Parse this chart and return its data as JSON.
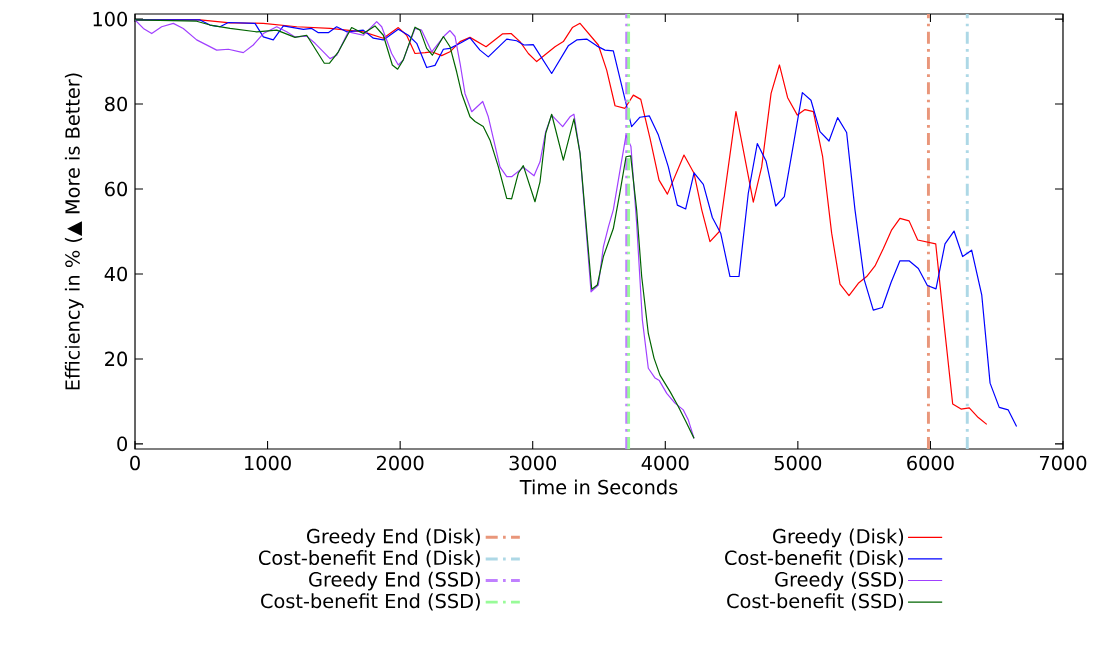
{
  "chart_data": {
    "type": "line",
    "xlabel": "Time in Seconds",
    "ylabel": "Efficiency in % (▲ More is Better)",
    "xlim": [
      0,
      7000
    ],
    "ylim": [
      -1.2,
      101.2
    ],
    "xticks": [
      0,
      1000,
      2000,
      3000,
      4000,
      5000,
      6000,
      7000
    ],
    "yticks": [
      0,
      20,
      40,
      60,
      80,
      100
    ],
    "grid": false,
    "legend": "bottom",
    "line_style": "solid",
    "marker": "none",
    "series": [
      {
        "name": "Greedy (Disk)",
        "color": "#ff0000",
        "x": [
          0,
          490,
          717,
          968,
          1220,
          1471,
          1722,
          1873,
          1986,
          2049,
          2112,
          2188,
          2238,
          2313,
          2376,
          2452,
          2527,
          2648,
          2771,
          2837,
          2904,
          2967,
          3030,
          3168,
          3231,
          3299,
          3357,
          3495,
          3558,
          3621,
          3696,
          3759,
          3815,
          3885,
          3953,
          4016,
          4141,
          4217,
          4275,
          4337,
          4408,
          4533,
          4664,
          4727,
          4798,
          4861,
          4923,
          4996,
          5054,
          5117,
          5187,
          5255,
          5318,
          5386,
          5456,
          5519,
          5582,
          5645,
          5708,
          5770,
          5839,
          5904,
          6040,
          6105,
          6168,
          6231,
          6293,
          6361,
          6425
        ],
        "values": [
          99.8,
          99.8,
          99.1,
          99.0,
          98.2,
          97.8,
          97.0,
          95.5,
          98.0,
          96.2,
          91.9,
          92.1,
          92.3,
          91.4,
          92.3,
          94.7,
          95.7,
          93.5,
          96.5,
          96.6,
          94.7,
          91.9,
          90.0,
          93.5,
          94.7,
          98.0,
          99.0,
          93.9,
          88.0,
          79.6,
          79.0,
          82.1,
          81.1,
          71.9,
          62.1,
          58.8,
          68.0,
          63.7,
          55.1,
          47.6,
          50.0,
          78.2,
          56.9,
          65.2,
          82.5,
          89.2,
          81.5,
          77.4,
          78.7,
          78.2,
          67.6,
          49.6,
          37.6,
          34.9,
          37.8,
          39.4,
          41.9,
          46.0,
          50.4,
          53.1,
          52.5,
          48.0,
          47.1,
          27.6,
          9.4,
          8.2,
          8.5,
          6.2,
          4.6
        ]
      },
      {
        "name": "Cost-benefit (Disk)",
        "color": "#0000ff",
        "x": [
          0,
          490,
          566,
          641,
          704,
          905,
          968,
          1043,
          1119,
          1270,
          1333,
          1383,
          1458,
          1521,
          1597,
          1722,
          1798,
          1873,
          1986,
          2062,
          2125,
          2200,
          2263,
          2326,
          2376,
          2452,
          2527,
          2602,
          2665,
          2804,
          2879,
          2934,
          3004,
          3143,
          3268,
          3332,
          3407,
          3483,
          3545,
          3608,
          3746,
          3809,
          3880,
          3948,
          4023,
          4091,
          4154,
          4217,
          4287,
          4355,
          4418,
          4488,
          4556,
          4626,
          4694,
          4760,
          4833,
          4898,
          4966,
          5034,
          5099,
          5167,
          5235,
          5300,
          5368,
          5431,
          5501,
          5569,
          5637,
          5703,
          5770,
          5839,
          5909,
          5977,
          6042,
          6110,
          6178,
          6243,
          6311,
          6387,
          6450,
          6519,
          6587,
          6650
        ],
        "values": [
          99.8,
          99.8,
          98.6,
          98.2,
          99.2,
          99.0,
          95.8,
          95.1,
          98.4,
          97.6,
          97.8,
          96.8,
          96.8,
          98.2,
          97.0,
          97.4,
          95.5,
          95.1,
          97.6,
          96.2,
          94.3,
          88.6,
          89.1,
          92.9,
          93.1,
          94.3,
          95.6,
          92.7,
          91.1,
          95.3,
          94.9,
          93.9,
          94.0,
          87.2,
          93.7,
          95.1,
          95.3,
          93.7,
          92.7,
          92.5,
          74.7,
          76.9,
          77.2,
          72.7,
          65.2,
          56.2,
          55.3,
          63.8,
          61.1,
          53.3,
          49.6,
          39.4,
          39.4,
          59.0,
          70.7,
          66.6,
          56.0,
          58.2,
          70.4,
          82.7,
          80.9,
          73.5,
          71.3,
          76.8,
          73.3,
          55.1,
          38.6,
          31.5,
          32.1,
          38.0,
          43.1,
          43.1,
          41.3,
          37.3,
          36.5,
          47.1,
          50.1,
          44.1,
          45.6,
          35.1,
          14.3,
          8.6,
          8.0,
          4.1
        ]
      },
      {
        "name": "Greedy (SSD)",
        "color": "#a040ff",
        "x": [
          0,
          63,
          126,
          201,
          289,
          364,
          465,
          616,
          704,
          817,
          892,
          968,
          1069,
          1144,
          1207,
          1295,
          1358,
          1471,
          1521,
          1609,
          1722,
          1823,
          1861,
          1936,
          1986,
          2024,
          2112,
          2162,
          2238,
          2338,
          2376,
          2414,
          2452,
          2489,
          2540,
          2623,
          2665,
          2753,
          2804,
          2841,
          2929,
          3010,
          3055,
          3098,
          3143,
          3226,
          3281,
          3311,
          3357,
          3440,
          3495,
          3533,
          3571,
          3608,
          3659,
          3704,
          3741,
          3784,
          3827,
          3872,
          3923,
          3955,
          4011,
          4073,
          4136,
          4174,
          4217
        ],
        "values": [
          99.8,
          97.8,
          96.6,
          98.2,
          99.0,
          97.8,
          95.1,
          92.7,
          92.9,
          92.1,
          93.9,
          96.6,
          98.2,
          97.0,
          95.8,
          96.0,
          94.3,
          90.7,
          91.5,
          97.0,
          96.2,
          99.4,
          98.2,
          91.9,
          89.2,
          90.4,
          97.8,
          97.4,
          92.3,
          96.2,
          97.3,
          95.9,
          89.6,
          82.5,
          78.2,
          80.6,
          77.0,
          65.2,
          62.9,
          62.9,
          65.1,
          63.1,
          66.4,
          73.5,
          77.4,
          74.7,
          77.0,
          77.6,
          68.4,
          35.8,
          37.4,
          46.4,
          51.1,
          55.1,
          64.5,
          72.7,
          70.0,
          51.9,
          29.2,
          17.8,
          15.5,
          14.9,
          11.9,
          9.6,
          8.0,
          5.6,
          1.3
        ]
      },
      {
        "name": "Cost-benefit (SSD)",
        "color": "#006400",
        "x": [
          0,
          465,
          566,
          717,
          918,
          1069,
          1207,
          1295,
          1428,
          1466,
          1534,
          1634,
          1722,
          1810,
          1873,
          1941,
          1981,
          2024,
          2112,
          2150,
          2200,
          2243,
          2326,
          2376,
          2426,
          2464,
          2527,
          2565,
          2627,
          2678,
          2741,
          2804,
          2841,
          2891,
          2929,
          3017,
          3055,
          3098,
          3143,
          3231,
          3311,
          3357,
          3445,
          3487,
          3533,
          3608,
          3659,
          3704,
          3739,
          3784,
          3822,
          3872,
          3915,
          3960,
          4036,
          4098,
          4156,
          4217
        ],
        "values": [
          99.8,
          99.5,
          98.6,
          97.8,
          97.0,
          97.4,
          95.7,
          96.2,
          89.6,
          89.6,
          92.3,
          98.0,
          96.6,
          98.4,
          96.2,
          89.2,
          88.2,
          90.4,
          98.1,
          97.4,
          93.1,
          91.5,
          95.9,
          93.5,
          87.6,
          82.5,
          77.0,
          75.9,
          74.7,
          71.5,
          65.2,
          57.8,
          57.7,
          63.7,
          65.5,
          57.0,
          61.7,
          73.1,
          77.6,
          66.8,
          76.5,
          68.4,
          36.4,
          37.4,
          44.1,
          50.7,
          59.4,
          67.6,
          67.8,
          55.1,
          39.4,
          26.0,
          20.2,
          16.2,
          12.3,
          8.8,
          5.2,
          1.3
        ]
      }
    ],
    "ref_lines": [
      {
        "axis": "x",
        "value": 5985,
        "label": "Greedy End (Disk)",
        "color": "#e9967a",
        "line_style": "dashed"
      },
      {
        "axis": "x",
        "value": 6278,
        "label": "Cost-benefit End (Disk)",
        "color": "#add8e6",
        "line_style": "dashed"
      },
      {
        "axis": "x",
        "value": 3709,
        "label": "Greedy End (SSD)",
        "color": "#c080ff",
        "line_style": "dashed"
      },
      {
        "axis": "x",
        "value": 3724,
        "label": "Cost-benefit End (SSD)",
        "color": "#98fb98",
        "line_style": "dashed"
      }
    ]
  }
}
